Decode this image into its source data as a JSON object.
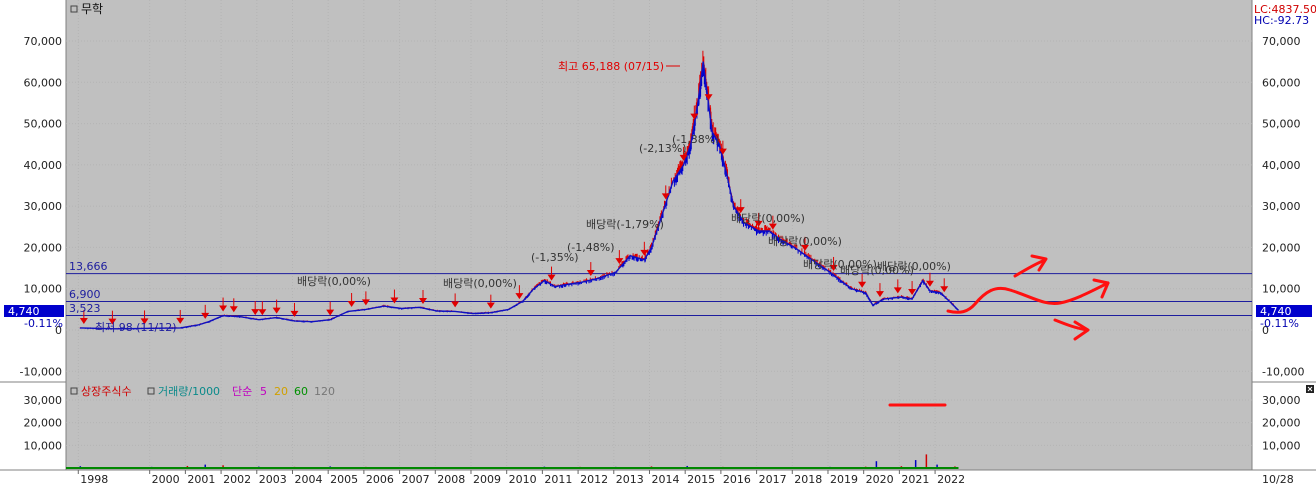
{
  "title": "무학",
  "lc_label": "LC:4837.50",
  "hc_label": "HC:-92.73",
  "right_corner_label": "10/28",
  "current_price_label": "4,740",
  "current_pct_label": "-0.11%",
  "level_13666_label": "13,666",
  "level_3523_label": "3,523",
  "level_6900_label": "6,900",
  "high_label": "최고 65,188 (07/15)",
  "low_label": "최저 98 (11/12)",
  "subpanel_legend": {
    "shares": "상장주식수",
    "volume": "거래량/1000",
    "simple": "단순",
    "ma5": "5",
    "ma20": "20",
    "ma60": "60",
    "ma120": "120"
  },
  "annotations": [
    {
      "text": "(-2,13%)"
    },
    {
      "text": "(-1,38%)"
    },
    {
      "text": "배당락(-1,79%)"
    },
    {
      "text": "(-1,48%)"
    },
    {
      "text": "(-1,35%)"
    },
    {
      "text": "배당락(0,00%)"
    },
    {
      "text": "배당락(0,00%)"
    },
    {
      "text": "배당락(0,00%)"
    },
    {
      "text": "배당락(0,00%)"
    },
    {
      "text": "배당락(0,00%)"
    },
    {
      "text": "배당락(0,00%)"
    },
    {
      "text": "배당락(0,00%)"
    }
  ],
  "colors": {
    "plot_bg": "#c0c0c0",
    "price_up": "#e00000",
    "price_down": "#0000d0",
    "hline": "#1d1d9e",
    "highlight": "#0000cc",
    "marker": "#e00000"
  },
  "chart_data": {
    "type": "line",
    "title": "무학",
    "x_labels": [
      "1998",
      "2000",
      "2001",
      "2002",
      "2003",
      "2004",
      "2005",
      "2006",
      "2007",
      "2008",
      "2009",
      "2010",
      "2011",
      "2012",
      "2013",
      "2014",
      "2015",
      "2016",
      "2017",
      "2018",
      "2019",
      "2020",
      "2021",
      "2022"
    ],
    "y_ticks": [
      "70,000",
      "60,000",
      "50,000",
      "40,000",
      "30,000",
      "20,000",
      "10,000",
      "0",
      "-10,000"
    ],
    "ylim": [
      -10000,
      70000
    ],
    "series": [
      {
        "x": [
          1998.0,
          1999.0,
          2000.0,
          2000.8,
          2001.3,
          2001.6,
          2002.0,
          2002.5,
          2003.0,
          2003.5,
          2004.0,
          2004.5,
          2005.0,
          2005.5,
          2006.0,
          2006.5,
          2007.0,
          2007.5,
          2008.0,
          2008.5,
          2009.0,
          2009.5,
          2010.0,
          2010.4,
          2010.7,
          2011.0,
          2011.3,
          2011.6,
          2012.0,
          2012.5,
          2013.0,
          2013.4,
          2013.8,
          2014.0,
          2014.3,
          2014.6,
          2014.9,
          2015.1,
          2015.3,
          2015.45,
          2015.55,
          2015.7,
          2015.9,
          2016.1,
          2016.3,
          2016.6,
          2017.0,
          2017.3,
          2017.6,
          2018.0,
          2018.5,
          2019.0,
          2019.3,
          2019.6,
          2020.0,
          2020.2,
          2020.5,
          2021.0,
          2021.3,
          2021.6,
          2021.8,
          2022.1,
          2022.4,
          2022.6
        ],
        "values": [
          500,
          300,
          400,
          500,
          1200,
          2000,
          3500,
          3200,
          2500,
          3000,
          2200,
          2000,
          2500,
          4500,
          5000,
          5800,
          5200,
          5500,
          4600,
          4500,
          4000,
          4200,
          5000,
          7000,
          10000,
          12000,
          10500,
          11000,
          11500,
          12500,
          14000,
          18000,
          17000,
          20000,
          28000,
          36000,
          40000,
          45000,
          55000,
          65000,
          58000,
          48000,
          45000,
          38000,
          30000,
          26000,
          24000,
          24000,
          22000,
          20000,
          17000,
          14000,
          12000,
          10000,
          9000,
          6000,
          7500,
          8000,
          7500,
          12000,
          9500,
          9000,
          6500,
          4740
        ]
      }
    ],
    "hlines": [
      13666,
      6900,
      3523
    ],
    "current_value": 4740,
    "high": {
      "value": 65188,
      "date": "07/15"
    },
    "low": {
      "value": 98,
      "date": "11/12"
    },
    "volume_panel": {
      "y_ticks": [
        "30,000",
        "20,000",
        "10,000"
      ],
      "ylim": [
        0,
        38000
      ],
      "x": [
        1998,
        1999,
        2000,
        2001,
        2001.5,
        2002,
        2003,
        2004,
        2005,
        2006,
        2007,
        2008,
        2009,
        2010,
        2011,
        2012,
        2013,
        2014,
        2015,
        2016,
        2017,
        2018,
        2019,
        2020,
        2020.3,
        2021,
        2021.4,
        2021.7,
        2022,
        2022.5
      ],
      "values": [
        800,
        300,
        500,
        900,
        1500,
        1200,
        600,
        500,
        700,
        500,
        400,
        400,
        300,
        400,
        600,
        500,
        500,
        700,
        900,
        500,
        400,
        400,
        500,
        600,
        3000,
        800,
        3500,
        6000,
        1500,
        700
      ]
    }
  }
}
